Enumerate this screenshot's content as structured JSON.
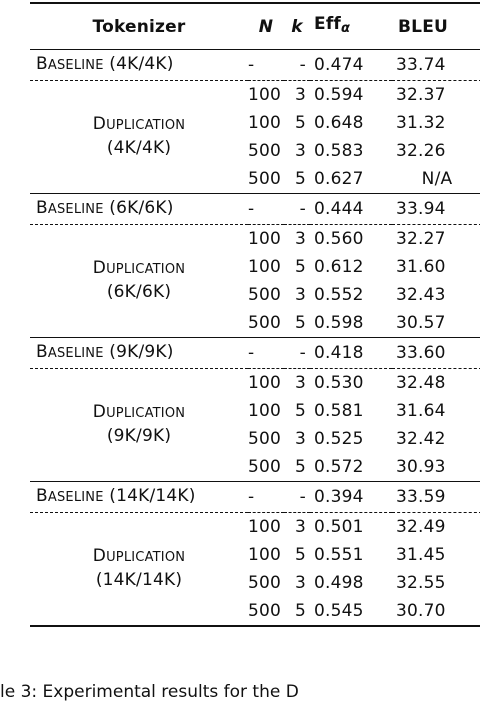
{
  "table": {
    "headers": {
      "tokenizer": "Tokenizer",
      "n": "N",
      "k": "k",
      "eff": "Eff",
      "eff_subscript": "α",
      "bleu": "BLEU"
    },
    "groups": [
      {
        "baseline": {
          "label_first": "B",
          "label_rest": "ASELINE",
          "vocab": "(4K/4K)",
          "n": "-",
          "k": "-",
          "eff": "0.474",
          "bleu": "33.74"
        },
        "duplication_label_first": "D",
        "duplication_label_rest": "UPLICATION",
        "duplication_vocab": "(4K/4K)",
        "rows": [
          {
            "n": "100",
            "k": "3",
            "eff": "0.594",
            "bleu": "32.37"
          },
          {
            "n": "100",
            "k": "5",
            "eff": "0.648",
            "bleu": "31.32"
          },
          {
            "n": "500",
            "k": "3",
            "eff": "0.583",
            "bleu": "32.26"
          },
          {
            "n": "500",
            "k": "5",
            "eff": "0.627",
            "bleu": "N/A"
          }
        ]
      },
      {
        "baseline": {
          "label_first": "B",
          "label_rest": "ASELINE",
          "vocab": "(6K/6K)",
          "n": "-",
          "k": "-",
          "eff": "0.444",
          "bleu": "33.94"
        },
        "duplication_label_first": "D",
        "duplication_label_rest": "UPLICATION",
        "duplication_vocab": "(6K/6K)",
        "rows": [
          {
            "n": "100",
            "k": "3",
            "eff": "0.560",
            "bleu": "32.27"
          },
          {
            "n": "100",
            "k": "5",
            "eff": "0.612",
            "bleu": "31.60"
          },
          {
            "n": "500",
            "k": "3",
            "eff": "0.552",
            "bleu": "32.43"
          },
          {
            "n": "500",
            "k": "5",
            "eff": "0.598",
            "bleu": "30.57"
          }
        ]
      },
      {
        "baseline": {
          "label_first": "B",
          "label_rest": "ASELINE",
          "vocab": "(9K/9K)",
          "n": "-",
          "k": "-",
          "eff": "0.418",
          "bleu": "33.60"
        },
        "duplication_label_first": "D",
        "duplication_label_rest": "UPLICATION",
        "duplication_vocab": "(9K/9K)",
        "rows": [
          {
            "n": "100",
            "k": "3",
            "eff": "0.530",
            "bleu": "32.48"
          },
          {
            "n": "100",
            "k": "5",
            "eff": "0.581",
            "bleu": "31.64"
          },
          {
            "n": "500",
            "k": "3",
            "eff": "0.525",
            "bleu": "32.42"
          },
          {
            "n": "500",
            "k": "5",
            "eff": "0.572",
            "bleu": "30.93"
          }
        ]
      },
      {
        "baseline": {
          "label_first": "B",
          "label_rest": "ASELINE",
          "vocab": "(14K/14K)",
          "n": "-",
          "k": "-",
          "eff": "0.394",
          "bleu": "33.59"
        },
        "duplication_label_first": "D",
        "duplication_label_rest": "UPLICATION",
        "duplication_vocab": "(14K/14K)",
        "rows": [
          {
            "n": "100",
            "k": "3",
            "eff": "0.501",
            "bleu": "32.49"
          },
          {
            "n": "100",
            "k": "5",
            "eff": "0.551",
            "bleu": "31.45"
          },
          {
            "n": "500",
            "k": "3",
            "eff": "0.498",
            "bleu": "32.55"
          },
          {
            "n": "500",
            "k": "5",
            "eff": "0.545",
            "bleu": "30.70"
          }
        ]
      }
    ]
  },
  "caption": "le 3: Experimental results for the D"
}
